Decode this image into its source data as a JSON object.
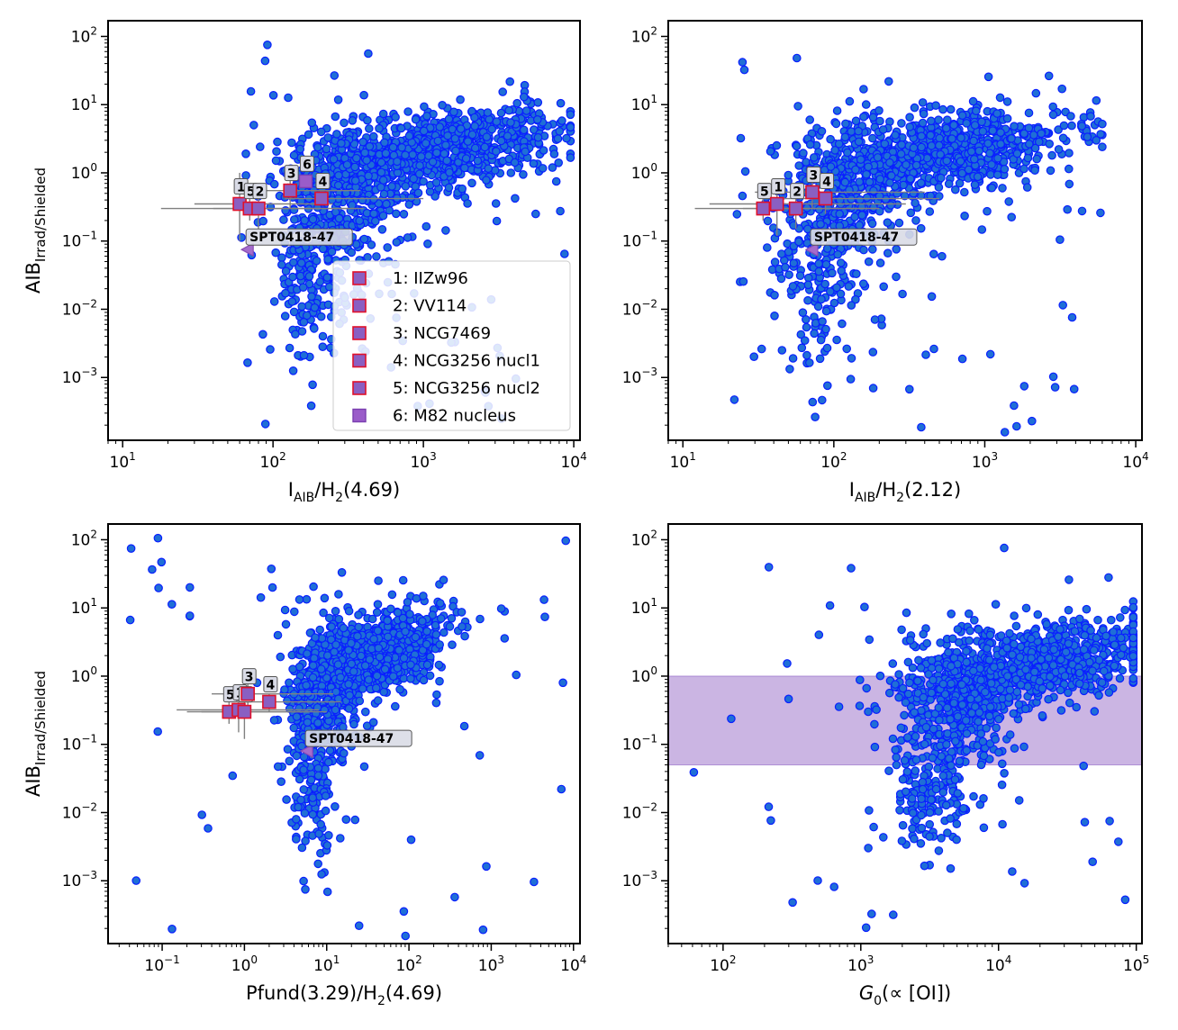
{
  "chart_data": [
    {
      "type": "scatter",
      "panel": "top-left",
      "xlabel_main": "I",
      "xlabel_sub": "AIB",
      "xlabel_tail": "/H",
      "xlabel_sub2": "2",
      "xlabel_end": "(4.69)",
      "ylabel_main": "AIB",
      "ylabel_sub": "Irrad/Shielded",
      "xscale": "log",
      "yscale": "log",
      "xlim": [
        8,
        11000
      ],
      "ylim": [
        0.00012,
        170
      ],
      "x_ticks": [
        {
          "value": 10,
          "base": "10",
          "exp": "1"
        },
        {
          "value": 100,
          "base": "10",
          "exp": "2"
        },
        {
          "value": 1000,
          "base": "10",
          "exp": "3"
        },
        {
          "value": 10000,
          "base": "10",
          "exp": "4"
        }
      ],
      "y_ticks": [
        {
          "value": 0.001,
          "base": "10",
          "exp": "−3"
        },
        {
          "value": 0.01,
          "base": "10",
          "exp": "−2"
        },
        {
          "value": 0.1,
          "base": "10",
          "exp": "−1"
        },
        {
          "value": 1,
          "base": "10",
          "exp": "0"
        },
        {
          "value": 10,
          "base": "10",
          "exp": "1"
        },
        {
          "value": 100,
          "base": "10",
          "exp": "2"
        }
      ],
      "cloud": {
        "x_center": 1200,
        "y_center": 2.0,
        "n": 1500,
        "x_range": [
          55,
          9500
        ],
        "y_range": [
          0.00015,
          100
        ]
      },
      "reference_points": [
        {
          "label": "1",
          "x": 60,
          "y": 0.35,
          "xerr": [
            30,
            250
          ],
          "yerr": [
            0.1,
            1.0
          ]
        },
        {
          "label": "5",
          "x": 70,
          "y": 0.3,
          "xerr": [
            18,
            400
          ],
          "yerr": [
            0.2,
            0.7
          ]
        },
        {
          "label": "2",
          "x": 80,
          "y": 0.3,
          "xerr": [
            40,
            350
          ],
          "yerr": [
            0.15,
            0.5
          ]
        },
        {
          "label": "3",
          "x": 130,
          "y": 0.55,
          "xerr": [
            55,
            380
          ],
          "yerr": [
            0.3,
            0.8
          ]
        },
        {
          "label": "4",
          "x": 210,
          "y": 0.42,
          "xerr": [
            120,
            1000
          ],
          "yerr": [
            0.35,
            0.5
          ]
        },
        {
          "label": "6",
          "x": 165,
          "y": 0.75
        }
      ],
      "spt": {
        "label": "SPT0418-47",
        "x": 68,
        "y": 0.075
      },
      "legend": {
        "placement": "lower-right",
        "entries": [
          "1: IIZw96",
          "2: VV114",
          "3: NCG7469",
          "4: NCG3256 nucl1",
          "5: NCG3256 nucl2",
          "6: M82 nucleus"
        ]
      }
    },
    {
      "type": "scatter",
      "panel": "top-right",
      "xlabel_main": "I",
      "xlabel_sub": "AIB",
      "xlabel_tail": "/H",
      "xlabel_sub2": "2",
      "xlabel_end": "(2.12)",
      "xscale": "log",
      "yscale": "log",
      "xlim": [
        8,
        11000
      ],
      "ylim": [
        0.00012,
        170
      ],
      "x_ticks": [
        {
          "value": 10,
          "base": "10",
          "exp": "1"
        },
        {
          "value": 100,
          "base": "10",
          "exp": "2"
        },
        {
          "value": 1000,
          "base": "10",
          "exp": "3"
        },
        {
          "value": 10000,
          "base": "10",
          "exp": "4"
        }
      ],
      "y_ticks": [
        {
          "value": 0.001,
          "base": "10",
          "exp": "−3"
        },
        {
          "value": 0.01,
          "base": "10",
          "exp": "−2"
        },
        {
          "value": 0.1,
          "base": "10",
          "exp": "−1"
        },
        {
          "value": 1,
          "base": "10",
          "exp": "0"
        },
        {
          "value": 10,
          "base": "10",
          "exp": "1"
        },
        {
          "value": 100,
          "base": "10",
          "exp": "2"
        }
      ],
      "cloud": {
        "x_center": 500,
        "y_center": 2.0,
        "n": 1400,
        "x_range": [
          17,
          6000
        ],
        "y_range": [
          0.00015,
          100
        ]
      },
      "reference_points": [
        {
          "label": "5",
          "x": 34,
          "y": 0.3,
          "xerr": [
            12,
            200
          ],
          "yerr": [
            0.2,
            0.5
          ]
        },
        {
          "label": "1",
          "x": 42,
          "y": 0.35,
          "xerr": [
            15,
            300
          ],
          "yerr": [
            0.12,
            0.8
          ]
        },
        {
          "label": "2",
          "x": 56,
          "y": 0.3,
          "xerr": [
            25,
            200
          ],
          "yerr": [
            0.15,
            0.5
          ]
        },
        {
          "label": "3",
          "x": 72,
          "y": 0.52,
          "xerr": [
            30,
            400
          ],
          "yerr": [
            0.3,
            0.8
          ]
        },
        {
          "label": "4",
          "x": 88,
          "y": 0.42,
          "xerr": [
            40,
            500
          ],
          "yerr": [
            0.25,
            0.5
          ]
        }
      ],
      "spt": {
        "label": "SPT0418-47",
        "x": 72,
        "y": 0.075
      }
    },
    {
      "type": "scatter",
      "panel": "bottom-left",
      "xlabel_plain": "Pfund(3.29)/H",
      "xlabel_sub2": "2",
      "xlabel_end": "(4.69)",
      "ylabel_main": "AIB",
      "ylabel_sub": "Irrad/Shielded",
      "xscale": "log",
      "yscale": "log",
      "xlim": [
        0.022,
        12000
      ],
      "ylim": [
        0.00012,
        170
      ],
      "x_ticks": [
        {
          "value": 0.1,
          "base": "10",
          "exp": "−1"
        },
        {
          "value": 1,
          "base": "10",
          "exp": "0"
        },
        {
          "value": 10,
          "base": "10",
          "exp": "1"
        },
        {
          "value": 100,
          "base": "10",
          "exp": "2"
        },
        {
          "value": 1000,
          "base": "10",
          "exp": "3"
        },
        {
          "value": 10000,
          "base": "10",
          "exp": "4"
        }
      ],
      "y_ticks": [
        {
          "value": 0.001,
          "base": "10",
          "exp": "−3"
        },
        {
          "value": 0.01,
          "base": "10",
          "exp": "−2"
        },
        {
          "value": 0.1,
          "base": "10",
          "exp": "−1"
        },
        {
          "value": 1,
          "base": "10",
          "exp": "0"
        },
        {
          "value": 10,
          "base": "10",
          "exp": "1"
        },
        {
          "value": 100,
          "base": "10",
          "exp": "2"
        }
      ],
      "cloud": {
        "x_center": 40,
        "y_center": 2.0,
        "n": 1500,
        "x_range": [
          0.025,
          9500
        ],
        "y_range": [
          0.00015,
          140
        ]
      },
      "reference_points": [
        {
          "label": "5",
          "x": 0.65,
          "y": 0.3,
          "xerr": [
            0.2,
            10
          ],
          "yerr": [
            0.2,
            0.6
          ]
        },
        {
          "label": "1",
          "x": 0.85,
          "y": 0.32,
          "xerr": [
            0.15,
            8
          ],
          "yerr": [
            0.15,
            0.5
          ]
        },
        {
          "label": "2",
          "x": 1.0,
          "y": 0.3,
          "xerr": [
            0.3,
            6
          ],
          "yerr": [
            0.12,
            0.45
          ]
        },
        {
          "label": "3",
          "x": 1.1,
          "y": 0.55,
          "xerr": [
            0.4,
            12
          ],
          "yerr": [
            0.3,
            0.8
          ]
        },
        {
          "label": "4",
          "x": 2.0,
          "y": 0.42,
          "xerr": [
            0.8,
            15
          ],
          "yerr": [
            0.3,
            0.55
          ]
        }
      ],
      "spt": {
        "label": "SPT0418-47",
        "x": 5.8,
        "y": 0.08
      }
    },
    {
      "type": "scatter",
      "panel": "bottom-right",
      "xlabel_italic": "G",
      "xlabel_sub": "0",
      "xlabel_end": "(∝ [OI])",
      "xscale": "log",
      "yscale": "log",
      "xlim": [
        40,
        110000
      ],
      "ylim": [
        0.00012,
        170
      ],
      "x_ticks": [
        {
          "value": 100,
          "base": "10",
          "exp": "2"
        },
        {
          "value": 1000,
          "base": "10",
          "exp": "3"
        },
        {
          "value": 10000,
          "base": "10",
          "exp": "4"
        },
        {
          "value": 100000,
          "base": "10",
          "exp": "5"
        }
      ],
      "y_ticks": [
        {
          "value": 0.001,
          "base": "10",
          "exp": "−3"
        },
        {
          "value": 0.01,
          "base": "10",
          "exp": "−2"
        },
        {
          "value": 0.1,
          "base": "10",
          "exp": "−1"
        },
        {
          "value": 1,
          "base": "10",
          "exp": "0"
        },
        {
          "value": 10,
          "base": "10",
          "exp": "1"
        },
        {
          "value": 100,
          "base": "10",
          "exp": "2"
        }
      ],
      "cloud": {
        "x_center": 20000,
        "y_center": 1.5,
        "n": 1500,
        "x_range": [
          55,
          95000
        ],
        "y_range": [
          0.00015,
          100
        ]
      },
      "band": {
        "y_range": [
          0.05,
          1.0
        ],
        "color": "#8b5cc2"
      }
    }
  ],
  "colors": {
    "points_fill": "#1f6fd6",
    "points_edge": "#0a1fff",
    "reference_fill": "#8a5fc2",
    "reference_edge": "#e0102a",
    "errorbars": "#808080"
  }
}
